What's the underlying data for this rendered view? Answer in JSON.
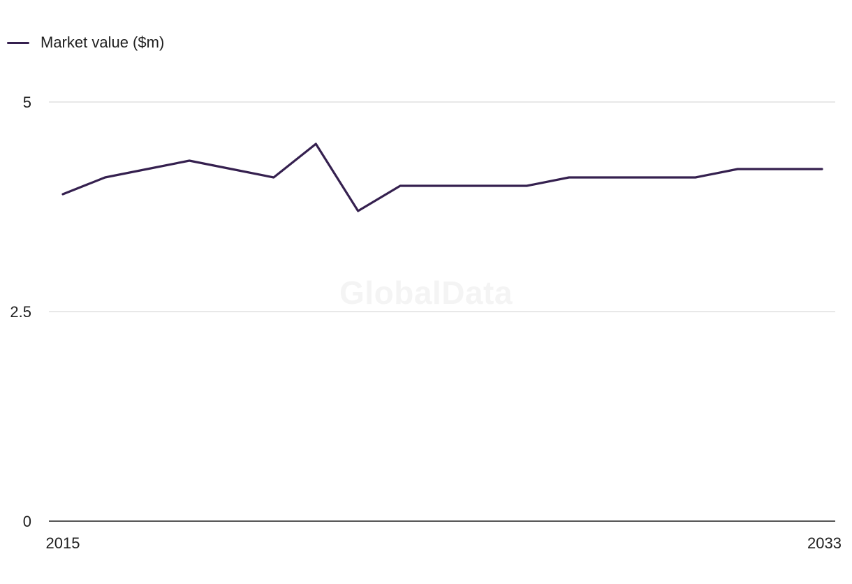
{
  "watermark": "GlobalData",
  "colors": {
    "series": "#35204f",
    "grid": "#d9d9d9",
    "axis": "#1f1f1f"
  },
  "chart_data": {
    "type": "line",
    "title": "",
    "xlabel": "",
    "ylabel": "",
    "legend": "top-left",
    "grid": true,
    "x": [
      2015,
      2016,
      2017,
      2018,
      2019,
      2020,
      2021,
      2022,
      2023,
      2024,
      2025,
      2026,
      2027,
      2028,
      2029,
      2030,
      2031,
      2032,
      2033
    ],
    "x_tick_labels": [
      "2015",
      "2033"
    ],
    "y_ticks": [
      0,
      2.5,
      5
    ],
    "y_tick_labels": [
      "0",
      "2.5",
      "5"
    ],
    "ylim": [
      0,
      5
    ],
    "series": [
      {
        "name": "Market value ($m)",
        "values": [
          3.9,
          4.1,
          4.2,
          4.3,
          4.2,
          4.1,
          4.5,
          3.7,
          4.0,
          4.0,
          4.0,
          4.0,
          4.1,
          4.1,
          4.1,
          4.1,
          4.2,
          4.2,
          4.2
        ]
      }
    ]
  }
}
